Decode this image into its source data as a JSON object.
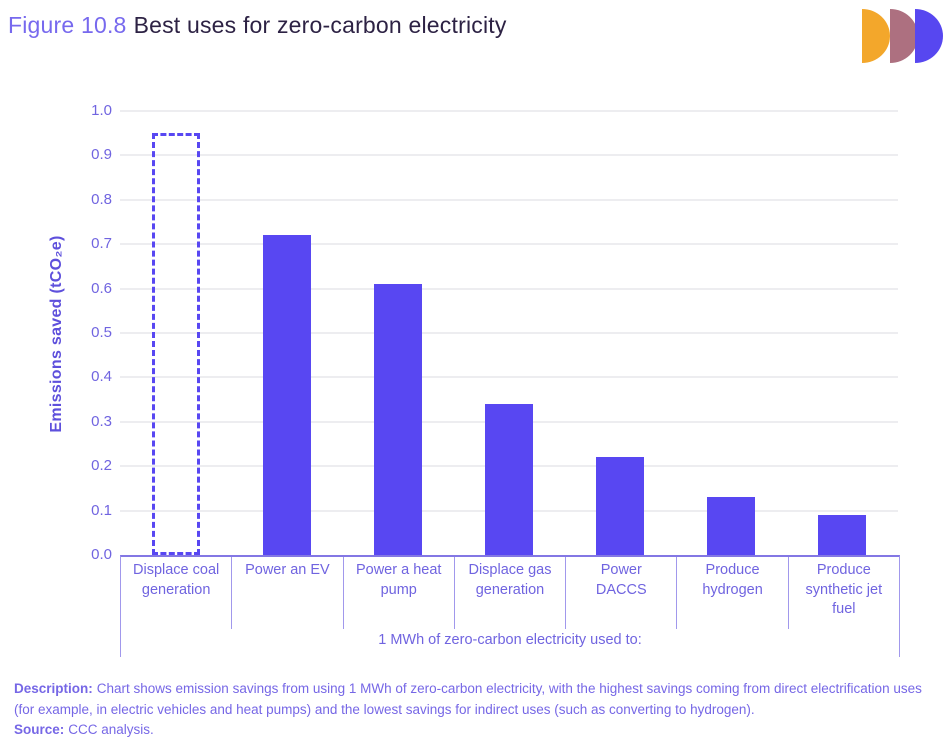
{
  "header": {
    "figure_label": "Figure 10.8",
    "title": "Best uses for zero-carbon electricity",
    "logo": {
      "name": "ccc-logo",
      "colors": [
        "#F3A72B",
        "#AD7080",
        "#5747F0"
      ]
    }
  },
  "chart_data": {
    "type": "bar",
    "title": "Best uses for zero-carbon electricity",
    "xlabel": "1 MWh of zero-carbon electricity used to:",
    "ylabel": "Emissions saved (tCO₂e)",
    "ylim": [
      0.0,
      1.0
    ],
    "ytick_labels": [
      "0.0",
      "0.1",
      "0.2",
      "0.3",
      "0.4",
      "0.5",
      "0.6",
      "0.7",
      "0.8",
      "0.9",
      "1.0"
    ],
    "grid": true,
    "legend": false,
    "categories": [
      "Displace coal generation",
      "Power an EV",
      "Power a heat pump",
      "Displace gas generation",
      "Power DACCS",
      "Produce hydrogen",
      "Produce synthetic jet fuel"
    ],
    "values": [
      0.95,
      0.72,
      0.61,
      0.34,
      0.22,
      0.13,
      0.09
    ],
    "bar_styles": [
      "dashed-outline",
      "solid",
      "solid",
      "solid",
      "solid",
      "solid",
      "solid"
    ],
    "bar_color": "#5847F2"
  },
  "footer": {
    "description_label": "Description:",
    "description_text": "Chart shows emission savings from using 1 MWh of zero-carbon electricity, with the highest savings coming from direct electrification uses (for example, in electric vehicles and heat pumps) and the lowest savings for indirect uses (such as converting to hydrogen).",
    "source_label": "Source:",
    "source_text": "CCC analysis."
  },
  "colors": {
    "accent_bar": "#5847F2",
    "figure_label": "#7769EE",
    "title_text": "#2D2244",
    "axis_text": "#7064E0",
    "y_title": "#5E50DC",
    "grid_line": "#EDEDF0",
    "axis_line": "#8377E4",
    "box_border": "#A198EC",
    "desc_text": "#7667E6"
  }
}
